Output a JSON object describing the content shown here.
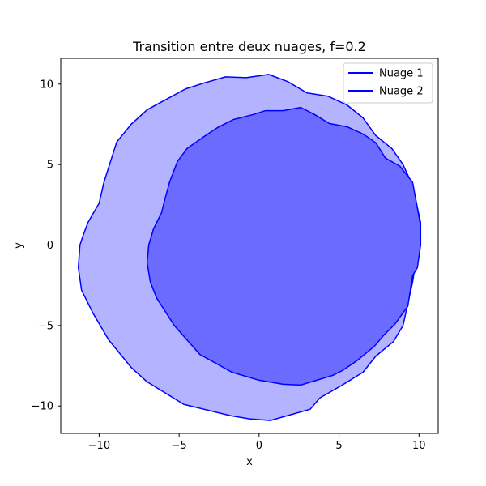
{
  "chart_data": {
    "type": "area",
    "title": "Transition entre deux nuages, f=0.2",
    "xlabel": "x",
    "ylabel": "y",
    "xlim": [
      -12.4,
      11.2
    ],
    "ylim": [
      -11.7,
      11.6
    ],
    "xticks": [
      -10,
      -5,
      0,
      5,
      10
    ],
    "yticks": [
      -10,
      -5,
      0,
      5,
      10
    ],
    "xtick_labels": [
      "−10",
      "−5",
      "0",
      "5",
      "10"
    ],
    "ytick_labels": [
      "−10",
      "−5",
      "0",
      "5",
      "10"
    ],
    "grid": false,
    "legend_position": "upper right",
    "series": [
      {
        "name": "Nuage 1",
        "color": "#0000ff",
        "fill": "#b3b3ff",
        "points": [
          [
            0.6,
            10.6
          ],
          [
            1.8,
            10.15
          ],
          [
            3.0,
            9.45
          ],
          [
            4.3,
            9.25
          ],
          [
            5.5,
            8.7
          ],
          [
            6.5,
            7.9
          ],
          [
            7.3,
            6.8
          ],
          [
            8.3,
            6.0
          ],
          [
            9.0,
            5.0
          ],
          [
            9.6,
            3.7
          ],
          [
            10.1,
            1.4
          ],
          [
            10.1,
            0.0
          ],
          [
            9.8,
            -1.0
          ],
          [
            9.6,
            -2.3
          ],
          [
            9.0,
            -5.0
          ],
          [
            8.4,
            -6.0
          ],
          [
            7.3,
            -6.9
          ],
          [
            6.5,
            -7.9
          ],
          [
            5.2,
            -8.7
          ],
          [
            3.8,
            -9.5
          ],
          [
            3.2,
            -10.2
          ],
          [
            0.7,
            -10.9
          ],
          [
            -0.6,
            -10.8
          ],
          [
            -1.8,
            -10.6
          ],
          [
            -4.7,
            -9.9
          ],
          [
            -7.0,
            -8.5
          ],
          [
            -8.0,
            -7.6
          ],
          [
            -9.4,
            -5.9
          ],
          [
            -10.4,
            -4.2
          ],
          [
            -11.1,
            -2.8
          ],
          [
            -11.3,
            -1.4
          ],
          [
            -11.2,
            0.0
          ],
          [
            -11.0,
            0.6
          ],
          [
            -10.7,
            1.4
          ],
          [
            -10.0,
            2.6
          ],
          [
            -9.7,
            3.9
          ],
          [
            -8.9,
            6.4
          ],
          [
            -8.0,
            7.5
          ],
          [
            -7.0,
            8.4
          ],
          [
            -5.9,
            9.0
          ],
          [
            -4.6,
            9.7
          ],
          [
            -3.5,
            10.05
          ],
          [
            -2.1,
            10.45
          ],
          [
            -0.8,
            10.4
          ]
        ]
      },
      {
        "name": "Nuage 2",
        "color": "#0000ff",
        "fill": "#6b6bff",
        "points": [
          [
            0.4,
            8.35
          ],
          [
            1.5,
            8.35
          ],
          [
            2.6,
            8.55
          ],
          [
            3.4,
            8.15
          ],
          [
            4.4,
            7.55
          ],
          [
            5.5,
            7.35
          ],
          [
            6.5,
            6.9
          ],
          [
            7.3,
            6.35
          ],
          [
            7.9,
            5.4
          ],
          [
            8.8,
            4.9
          ],
          [
            9.6,
            3.9
          ],
          [
            10.1,
            1.2
          ],
          [
            10.1,
            0.0
          ],
          [
            9.9,
            -1.4
          ],
          [
            9.6,
            -1.9
          ],
          [
            9.3,
            -3.8
          ],
          [
            8.5,
            -4.9
          ],
          [
            7.8,
            -5.6
          ],
          [
            7.2,
            -6.3
          ],
          [
            6.1,
            -7.2
          ],
          [
            5.2,
            -7.8
          ],
          [
            4.6,
            -8.1
          ],
          [
            2.6,
            -8.7
          ],
          [
            1.5,
            -8.65
          ],
          [
            0.0,
            -8.4
          ],
          [
            -1.7,
            -7.9
          ],
          [
            -3.7,
            -6.8
          ],
          [
            -4.5,
            -5.9
          ],
          [
            -5.3,
            -5.0
          ],
          [
            -6.4,
            -3.3
          ],
          [
            -6.8,
            -2.3
          ],
          [
            -7.0,
            -1.1
          ],
          [
            -6.9,
            0.0
          ],
          [
            -6.6,
            1.0
          ],
          [
            -6.1,
            2.0
          ],
          [
            -5.9,
            2.8
          ],
          [
            -5.6,
            3.9
          ],
          [
            -5.1,
            5.2
          ],
          [
            -4.5,
            6.0
          ],
          [
            -3.5,
            6.7
          ],
          [
            -2.6,
            7.3
          ],
          [
            -1.6,
            7.8
          ],
          [
            -0.4,
            8.1
          ]
        ]
      }
    ]
  }
}
